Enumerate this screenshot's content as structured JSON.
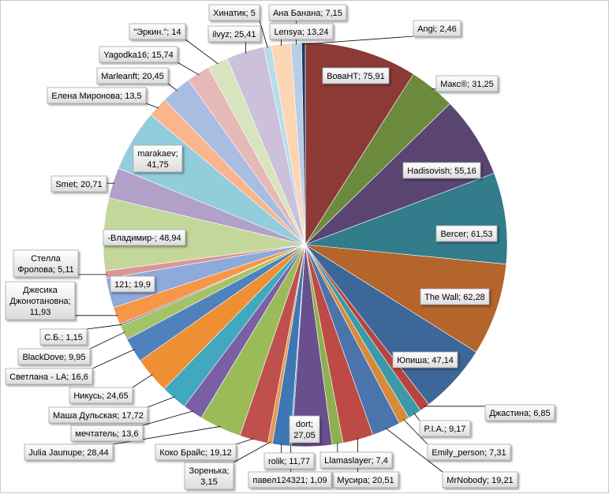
{
  "chart_data": {
    "type": "pie",
    "title": "",
    "start": "top",
    "direction": "clockwise",
    "legend": "none",
    "slices": [
      {
        "name": "ВоваНТ",
        "value": 75.91,
        "label": "ВоваНТ; 75,91",
        "color": "#8b3a36"
      },
      {
        "name": "Макс®",
        "value": 31.25,
        "label": "Макс®; 31,25",
        "color": "#6c8a3e"
      },
      {
        "name": "Hadisovish",
        "value": 55.16,
        "label": "Hadisovish; 55,16",
        "color": "#5a4472"
      },
      {
        "name": "Bercer",
        "value": 61.53,
        "label": "Bercer; 61,53",
        "color": "#327c8c"
      },
      {
        "name": "The Wall",
        "value": 62.28,
        "label": "The Wall; 62,28",
        "color": "#b3652b"
      },
      {
        "name": "Юпиша",
        "value": 47.14,
        "label": "Юпиша; 47,14",
        "color": "#3d6699"
      },
      {
        "name": "Джастина",
        "value": 6.85,
        "label": "Джастина; 6,85",
        "color": "#b84440"
      },
      {
        "name": "P.I.A.",
        "value": 9.17,
        "label": "P.I.A.; 9,17",
        "color": "#3c9aa8"
      },
      {
        "name": "Emily_person",
        "value": 7.31,
        "label": "Emily_person; 7,31",
        "color": "#d88a3c"
      },
      {
        "name": "MrNobody",
        "value": 19.21,
        "label": "MrNobody; 19,21",
        "color": "#4b74ad"
      },
      {
        "name": "Мусира",
        "value": 20.51,
        "label": "Мусира; 20,51",
        "color": "#bd4a44"
      },
      {
        "name": "Llamaslayer",
        "value": 7.4,
        "label": "Llamaslayer; 7,4",
        "color": "#8fb04e"
      },
      {
        "name": "dort",
        "value": 27.05,
        "label": "dort;\n27,05",
        "color": "#6a4f8e"
      },
      {
        "name": "павел124321",
        "value": 1.09,
        "label": "павел124321; 1,09",
        "color": "#4aa3b8"
      },
      {
        "name": "rolik",
        "value": 11.77,
        "label": "rolik; 11,77",
        "color": "#3f76b4"
      },
      {
        "name": "Зоренька",
        "value": 3.15,
        "label": "Зоренька;\n3,15",
        "color": "#e59a4b"
      },
      {
        "name": "Коко Брайс",
        "value": 19.12,
        "label": "Коко Брайс; 19,12",
        "color": "#c0504d"
      },
      {
        "name": "Julia Jaunupe",
        "value": 28.44,
        "label": "Julia Jaunupe; 28,44",
        "color": "#9bbb59"
      },
      {
        "name": "мечтатель",
        "value": 13.6,
        "label": "мечтатель; 13,6",
        "color": "#7b5fa5"
      },
      {
        "name": "Маша Дульская",
        "value": 17.72,
        "label": "Маша Дульская; 17,72",
        "color": "#42a8be"
      },
      {
        "name": "Никусь",
        "value": 24.65,
        "label": "Никусь; 24,65",
        "color": "#ef8f33"
      },
      {
        "name": "Светлана - LA",
        "value": 16.6,
        "label": "Светлана - LA; 16,6",
        "color": "#4f81bd"
      },
      {
        "name": "BlackDove",
        "value": 9.95,
        "label": "BlackDove; 9,95",
        "color": "#a4c367"
      },
      {
        "name": "С.Б.",
        "value": 1.15,
        "label": "С.Б.; 1,15",
        "color": "#8064a2"
      },
      {
        "name": "Джесика Джонотановна",
        "value": 11.93,
        "label": "Джесика\nДжонотановна;\n11,93",
        "color": "#f79646"
      },
      {
        "name": "121",
        "value": 19.9,
        "label": "121; 19,9",
        "color": "#8ea9db"
      },
      {
        "name": "Стелла Фролова",
        "value": 5.11,
        "label": "Стелла\nФролова; 5,11",
        "color": "#d99694"
      },
      {
        "name": "-Владимир-",
        "value": 48.94,
        "label": "-Владимир-; 48,94",
        "color": "#c4d79b"
      },
      {
        "name": "Smet",
        "value": 20.71,
        "label": "Smet; 20,71",
        "color": "#b1a0c7"
      },
      {
        "name": "marakaev",
        "value": 41.75,
        "label": "marakaev;\n41,75",
        "color": "#92cddc"
      },
      {
        "name": "Елена Миронова",
        "value": 13.5,
        "label": "Елена Миронова;  13,5",
        "color": "#fab58c"
      },
      {
        "name": "Marleanft",
        "value": 20.45,
        "label": "Marleanft; 20,45",
        "color": "#a9bce1"
      },
      {
        "name": "Yagodka16",
        "value": 15.74,
        "label": "Yagodka16; 15,74",
        "color": "#e6b8b7"
      },
      {
        "name": "\"Эркин.\"",
        "value": 14,
        "label": "\"Эркин.\"; 14",
        "color": "#d7e4bd"
      },
      {
        "name": "ilvyz",
        "value": 25.41,
        "label": "ilvyz; 25,41",
        "color": "#ccc0da"
      },
      {
        "name": "Хинатик",
        "value": 5,
        "label": "Хинатик; 5",
        "color": "#b7dde8"
      },
      {
        "name": "Lensya",
        "value": 13.24,
        "label": "Lensya; 13,24",
        "color": "#fcd5b5"
      },
      {
        "name": "Ана Банана",
        "value": 7.15,
        "label": "Ана Банана; 7,15",
        "color": "#b9cde5"
      },
      {
        "name": "Angi",
        "value": 2.46,
        "label": "Angi; 2,46",
        "color": "#1f3864"
      }
    ]
  }
}
